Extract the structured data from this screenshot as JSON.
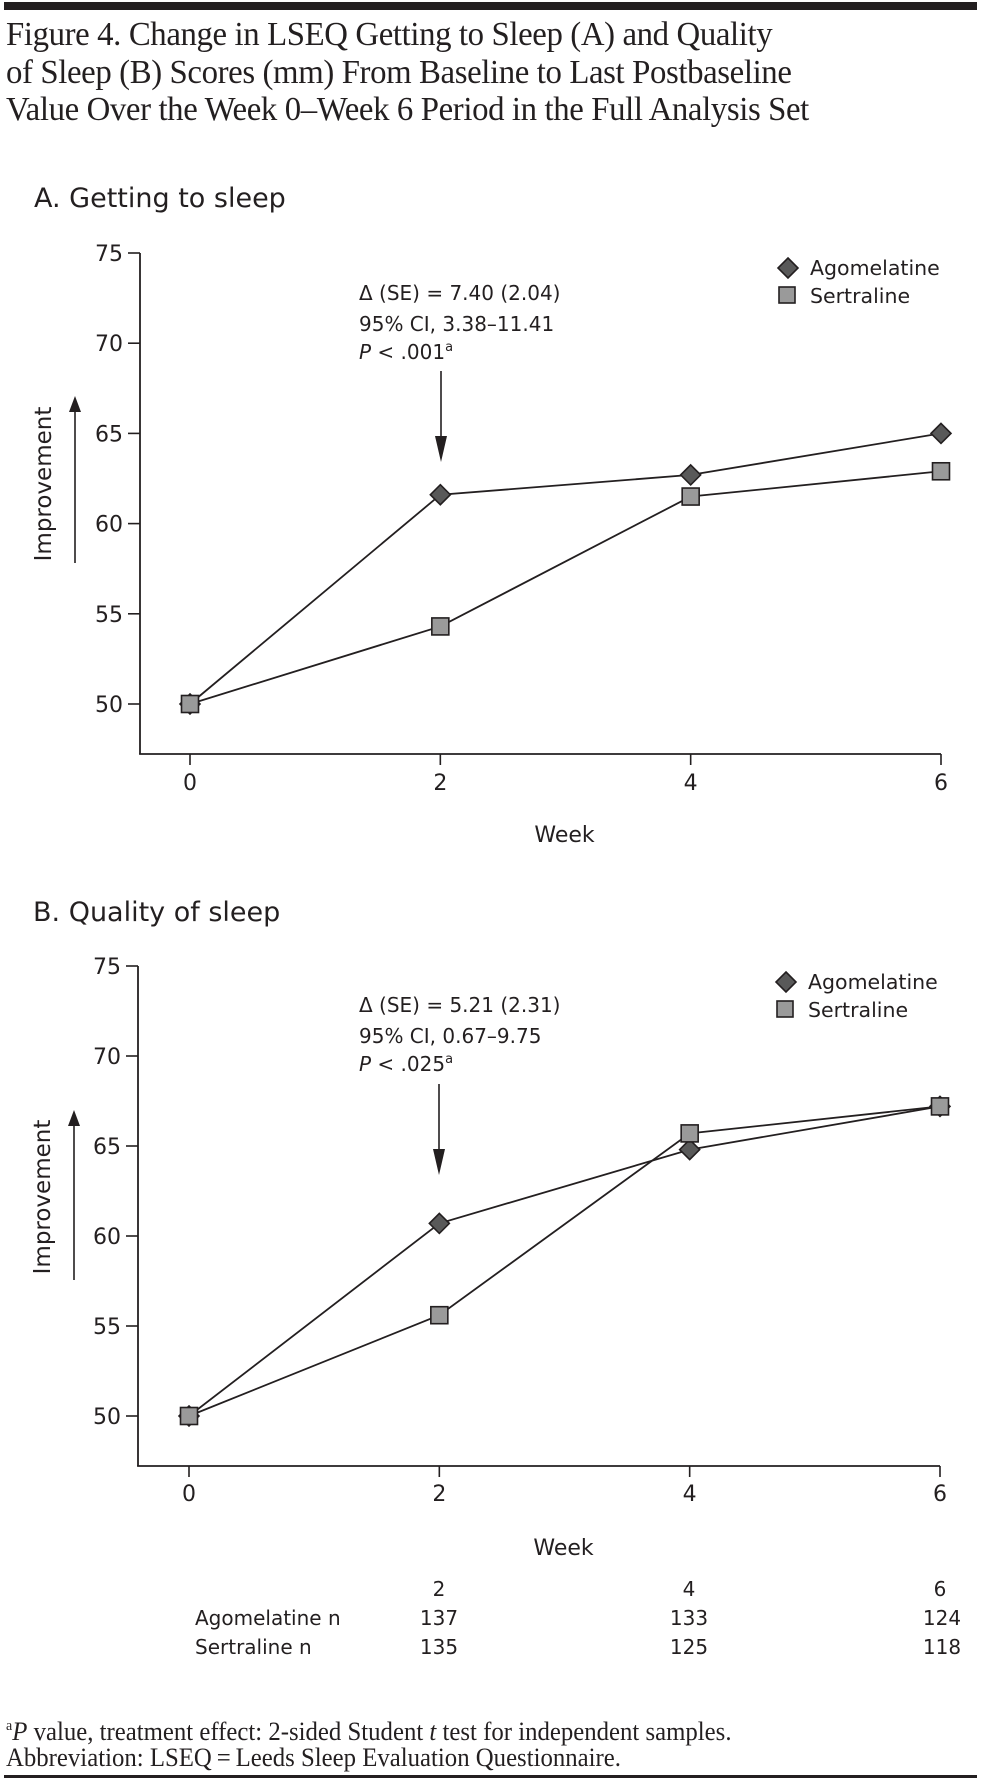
{
  "figure": {
    "title_lines": [
      "Figure 4. Change in LSEQ Getting to Sleep (A) and Quality",
      "of Sleep (B) Scores (mm) From Baseline to Last Postbaseline",
      "Value Over the Week 0–Week 6 Period in the Full Analysis Set"
    ],
    "footnote": {
      "marker": "a",
      "p_letter": "P",
      "line1_mid": " value, treatment effect: 2-sided Student ",
      "t_letter": "t",
      "line1_end": " test for independent samples.",
      "line2": "Abbreviation: LSEQ = Leeds Sleep Evaluation Questionnaire."
    },
    "colors": {
      "ink": "#231f20",
      "agomelatine_marker": "#595959",
      "sertraline_marker": "#9a9a9a"
    }
  },
  "chart_data": [
    {
      "type": "line",
      "panel": "A",
      "title": "A. Getting to sleep",
      "xlabel": "Week",
      "ylabel": "Improvement",
      "x": [
        0,
        2,
        4,
        6
      ],
      "xticks": [
        "0",
        "2",
        "4",
        "6"
      ],
      "yticks": [
        "50",
        "55",
        "60",
        "65",
        "70",
        "75"
      ],
      "ylim": [
        47.3,
        75
      ],
      "xlim": [
        -0.35,
        6
      ],
      "grid": false,
      "legend_position": "top-right",
      "series": [
        {
          "name": "Agomelatine",
          "marker": "diamond",
          "values": [
            50.0,
            61.6,
            62.7,
            65.0
          ]
        },
        {
          "name": "Sertraline",
          "marker": "square",
          "values": [
            50.0,
            54.3,
            61.5,
            62.9
          ]
        }
      ],
      "annotation": {
        "at_week": 2,
        "line1": "Δ (SE) = 7.40 (2.04)",
        "line2": "95% CI, 3.38–11.41",
        "p_letter": "P",
        "p_rest": " < .001",
        "sup": "a"
      }
    },
    {
      "type": "line",
      "panel": "B",
      "title": "B. Quality of sleep",
      "xlabel": "Week",
      "ylabel": "Improvement",
      "x": [
        0,
        2,
        4,
        6
      ],
      "xticks": [
        "0",
        "2",
        "4",
        "6"
      ],
      "yticks": [
        "50",
        "55",
        "60",
        "65",
        "70",
        "75"
      ],
      "ylim": [
        47.2,
        75
      ],
      "xlim": [
        -0.35,
        6
      ],
      "grid": false,
      "legend_position": "top-right",
      "series": [
        {
          "name": "Agomelatine",
          "marker": "diamond",
          "values": [
            50.0,
            60.7,
            64.8,
            67.2
          ]
        },
        {
          "name": "Sertraline",
          "marker": "square",
          "values": [
            50.0,
            55.6,
            65.7,
            67.2
          ]
        }
      ],
      "annotation": {
        "at_week": 2,
        "line1": "Δ (SE) = 5.21 (2.31)",
        "line2": "95% CI, 0.67–9.75",
        "p_letter": "P",
        "p_rest": " < .025",
        "sup": "a"
      }
    }
  ],
  "n_table": {
    "header": [
      "2",
      "4",
      "6"
    ],
    "rows": [
      {
        "label": "Agomelatine n",
        "values": [
          "137",
          "133",
          "124"
        ]
      },
      {
        "label": "Sertraline n",
        "values": [
          "135",
          "125",
          "118"
        ]
      }
    ]
  }
}
